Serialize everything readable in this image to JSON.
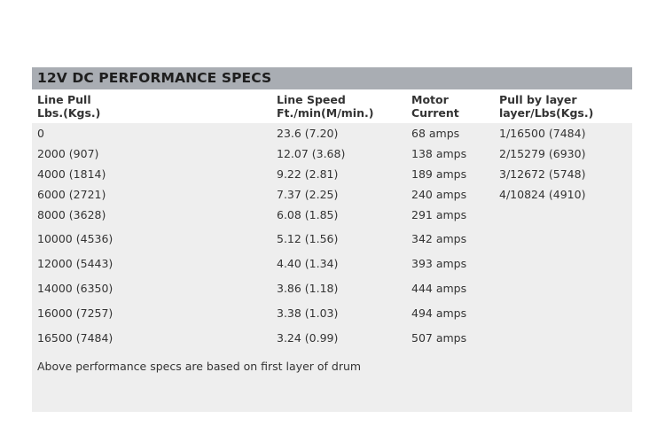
{
  "title": "12V DC PERFORMANCE SPECS",
  "headers": {
    "col1": [
      "Line Pull",
      "Lbs.(Kgs.)"
    ],
    "col2": [
      "Line Speed",
      "Ft./min(M/min.)"
    ],
    "col3": [
      "Motor",
      "Current"
    ],
    "col4": [
      "Pull by layer",
      "layer/Lbs(Kgs.)"
    ]
  },
  "rows": [
    {
      "pull": "0",
      "speed": "23.6 (7.20)",
      "current": "68 amps",
      "layer": "1/16500 (7484)"
    },
    {
      "pull": "2000 (907)",
      "speed": "12.07 (3.68)",
      "current": "138 amps",
      "layer": "2/15279 (6930)"
    },
    {
      "pull": "4000 (1814)",
      "speed": "9.22 (2.81)",
      "current": "189 amps",
      "layer": "3/12672 (5748)"
    },
    {
      "pull": "6000 (2721)",
      "speed": "7.37 (2.25)",
      "current": "240 amps",
      "layer": "4/10824 (4910)"
    },
    {
      "pull": "8000 (3628)",
      "speed": "6.08 (1.85)",
      "current": "291 amps",
      "layer": ""
    },
    {
      "pull": "10000 (4536)",
      "speed": "5.12 (1.56)",
      "current": "342 amps",
      "layer": ""
    },
    {
      "pull": "12000 (5443)",
      "speed": "4.40 (1.34)",
      "current": "393 amps",
      "layer": ""
    },
    {
      "pull": "14000 (6350)",
      "speed": "3.86 (1.18)",
      "current": "444 amps",
      "layer": ""
    },
    {
      "pull": "16000 (7257)",
      "speed": "3.38 (1.03)",
      "current": "494 amps",
      "layer": ""
    },
    {
      "pull": "16500 (7484)",
      "speed": "3.24 (0.99)",
      "current": "507 amps",
      "layer": ""
    }
  ],
  "footnote": "Above performance specs are based on first layer of drum",
  "colors": {
    "title_bar": "#a9adb3",
    "table_body": "#eeeeee"
  }
}
